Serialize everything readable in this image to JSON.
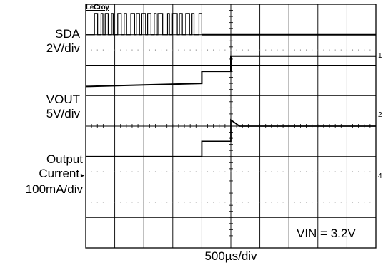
{
  "chart_data": {
    "type": "line",
    "logo": "LeCroy",
    "x_scale": "500µs/div",
    "annotation": "VIN = 3.2V",
    "grid": true,
    "divisions": {
      "x": 10,
      "y": 8
    },
    "channels": [
      {
        "marker": "1",
        "label_lines": [
          "SDA",
          "2V/div"
        ],
        "trace": "digital_burst",
        "description_values": {
          "burst_start_div": 0.3,
          "burst_end_div": 4.0,
          "high_level_div": 7.7,
          "low_level_div": 7.0
        }
      },
      {
        "marker": "2",
        "label_lines": [
          "VOUT",
          "5V/div"
        ],
        "trace": "step",
        "points_div": [
          [
            0,
            5.3
          ],
          [
            2.0,
            5.35
          ],
          [
            4.0,
            5.4
          ],
          [
            4.0,
            5.8
          ],
          [
            5.0,
            5.8
          ],
          [
            5.0,
            6.3
          ],
          [
            10,
            6.3
          ]
        ]
      },
      {
        "marker": "4",
        "label_lines": [
          "Output",
          "Current",
          "100mA/div"
        ],
        "trace": "step",
        "points_div": [
          [
            0,
            3.0
          ],
          [
            4.0,
            3.0
          ],
          [
            4.0,
            3.5
          ],
          [
            5.0,
            3.5
          ],
          [
            5.0,
            4.2
          ],
          [
            5.3,
            4.0
          ],
          [
            10,
            4.0
          ]
        ]
      }
    ]
  }
}
